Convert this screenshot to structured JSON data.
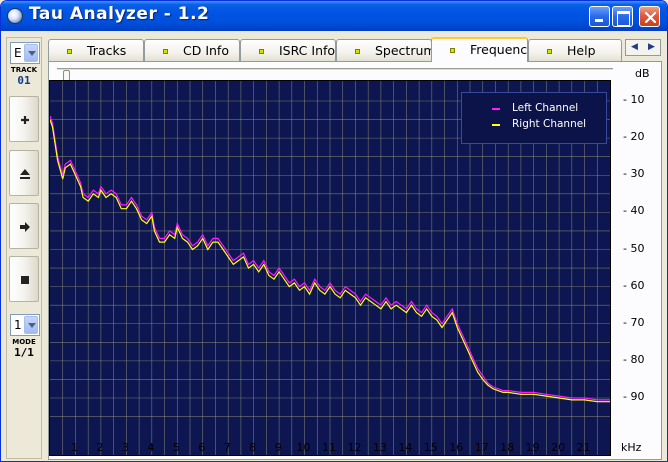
{
  "window": {
    "title": "Tau Analyzer - 1.2",
    "controls": [
      "minimize",
      "maximize",
      "close"
    ]
  },
  "sidebar": {
    "track_combo_value": "E",
    "track_label": "TRACK",
    "track_number": "01",
    "buttons": [
      {
        "name": "plus",
        "icon": "plus-icon"
      },
      {
        "name": "eject",
        "icon": "eject-icon"
      },
      {
        "name": "next",
        "icon": "arrow-right-icon"
      },
      {
        "name": "stop",
        "icon": "stop-icon"
      }
    ],
    "mode_combo_value": "1",
    "mode_label": "MODE",
    "mode_value": "1/1"
  },
  "tabs": [
    {
      "label": "Tracks",
      "active": false
    },
    {
      "label": "CD Info",
      "active": false
    },
    {
      "label": "ISRC Info",
      "active": false
    },
    {
      "label": "Spectrum",
      "active": false
    },
    {
      "label": "Frequency",
      "active": true
    },
    {
      "label": "Help",
      "active": false
    }
  ],
  "tab_led_color": "#d7e400",
  "chart_data": {
    "type": "line",
    "title": "",
    "xlabel": "kHz",
    "ylabel": "dB",
    "xlim": [
      0,
      22
    ],
    "ylim": [
      -10,
      -95
    ],
    "x_ticks": [
      "1",
      "2",
      "3",
      "4",
      "5",
      "6",
      "7",
      "8",
      "9",
      "10",
      "11",
      "12",
      "13",
      "14",
      "15",
      "16",
      "17",
      "18",
      "19",
      "20",
      "21"
    ],
    "y_ticks": [
      "- 10",
      "- 20",
      "- 30",
      "- 40",
      "- 50",
      "- 60",
      "- 70",
      "- 80",
      "- 90"
    ],
    "grid": true,
    "legend_position": "top-right",
    "background_color": "#0d1650",
    "grid_color": "#9a9a7a",
    "series": [
      {
        "name": "Left Channel",
        "color": "#ff1aff",
        "x": [
          0.0,
          0.1,
          0.3,
          0.5,
          0.6,
          0.8,
          1.0,
          1.2,
          1.3,
          1.5,
          1.7,
          1.9,
          2.0,
          2.2,
          2.4,
          2.6,
          2.8,
          3.0,
          3.2,
          3.4,
          3.6,
          3.8,
          4.0,
          4.1,
          4.3,
          4.5,
          4.7,
          4.9,
          5.0,
          5.2,
          5.4,
          5.6,
          5.8,
          6.0,
          6.2,
          6.4,
          6.6,
          6.8,
          7.0,
          7.2,
          7.4,
          7.6,
          7.8,
          8.0,
          8.2,
          8.4,
          8.6,
          8.8,
          9.0,
          9.2,
          9.4,
          9.6,
          9.8,
          10.0,
          10.2,
          10.4,
          10.6,
          10.8,
          11.0,
          11.2,
          11.4,
          11.6,
          11.8,
          12.0,
          12.2,
          12.4,
          12.6,
          12.8,
          13.0,
          13.2,
          13.4,
          13.6,
          13.8,
          14.0,
          14.2,
          14.4,
          14.6,
          14.8,
          15.0,
          15.2,
          15.4,
          15.6,
          15.8,
          16.0,
          16.2,
          16.4,
          16.6,
          16.8,
          17.0,
          17.2,
          17.4,
          17.6,
          17.8,
          18.0,
          18.5,
          19.0,
          19.5,
          20.0,
          20.5,
          21.0,
          21.5,
          22.0
        ],
        "values": [
          -14,
          -16,
          -25,
          -30,
          -27,
          -26,
          -29,
          -32,
          -35,
          -36,
          -34,
          -35,
          -33,
          -35,
          -34,
          -35,
          -38,
          -38,
          -36,
          -38,
          -41,
          -42,
          -40,
          -44,
          -47,
          -47,
          -45,
          -46,
          -43,
          -46,
          -47,
          -49,
          -48,
          -46,
          -49,
          -47,
          -47,
          -49,
          -51,
          -53,
          -52,
          -51,
          -54,
          -53,
          -55,
          -53,
          -56,
          -57,
          -55,
          -57,
          -59,
          -58,
          -60,
          -59,
          -61,
          -58,
          -60,
          -61,
          -59,
          -61,
          -62,
          -60,
          -61,
          -62,
          -64,
          -62,
          -63,
          -64,
          -65,
          -63,
          -65,
          -64,
          -65,
          -66,
          -64,
          -66,
          -67,
          -65,
          -67,
          -68,
          -70,
          -68,
          -66,
          -70,
          -73,
          -76,
          -79,
          -82,
          -84,
          -86,
          -87,
          -87.5,
          -88,
          -88,
          -88.5,
          -88.5,
          -89,
          -89.5,
          -90,
          -90,
          -90.5,
          -90.5
        ]
      },
      {
        "name": "Right Channel",
        "color": "#ffff1a",
        "x": [
          0.0,
          0.1,
          0.3,
          0.5,
          0.6,
          0.8,
          1.0,
          1.2,
          1.3,
          1.5,
          1.7,
          1.9,
          2.0,
          2.2,
          2.4,
          2.6,
          2.8,
          3.0,
          3.2,
          3.4,
          3.6,
          3.8,
          4.0,
          4.1,
          4.3,
          4.5,
          4.7,
          4.9,
          5.0,
          5.2,
          5.4,
          5.6,
          5.8,
          6.0,
          6.2,
          6.4,
          6.6,
          6.8,
          7.0,
          7.2,
          7.4,
          7.6,
          7.8,
          8.0,
          8.2,
          8.4,
          8.6,
          8.8,
          9.0,
          9.2,
          9.4,
          9.6,
          9.8,
          10.0,
          10.2,
          10.4,
          10.6,
          10.8,
          11.0,
          11.2,
          11.4,
          11.6,
          11.8,
          12.0,
          12.2,
          12.4,
          12.6,
          12.8,
          13.0,
          13.2,
          13.4,
          13.6,
          13.8,
          14.0,
          14.2,
          14.4,
          14.6,
          14.8,
          15.0,
          15.2,
          15.4,
          15.6,
          15.8,
          16.0,
          16.2,
          16.4,
          16.6,
          16.8,
          17.0,
          17.2,
          17.4,
          17.6,
          17.8,
          18.0,
          18.5,
          19.0,
          19.5,
          20.0,
          20.5,
          21.0,
          21.5,
          22.0
        ],
        "values": [
          -15,
          -17,
          -26,
          -31,
          -28,
          -27,
          -30,
          -33,
          -36,
          -37,
          -35,
          -36,
          -34,
          -36,
          -35,
          -36,
          -39,
          -39,
          -37,
          -39,
          -42,
          -43,
          -41,
          -45,
          -48,
          -48,
          -46,
          -47,
          -44,
          -47,
          -48,
          -50,
          -49,
          -47,
          -50,
          -48,
          -48,
          -50,
          -52,
          -54,
          -53,
          -52,
          -55,
          -54,
          -56,
          -54,
          -57,
          -58,
          -56,
          -58,
          -60,
          -59,
          -61,
          -60,
          -62,
          -59,
          -61,
          -62,
          -60,
          -62,
          -63,
          -61,
          -62,
          -63,
          -65,
          -63,
          -64,
          -65,
          -66,
          -64,
          -66,
          -65,
          -66,
          -67,
          -65,
          -67,
          -68,
          -66,
          -68,
          -69,
          -71,
          -69,
          -67,
          -71,
          -74,
          -77,
          -80,
          -83,
          -85,
          -86.5,
          -87.5,
          -88,
          -88.5,
          -88.5,
          -89,
          -89,
          -89.5,
          -90,
          -90.5,
          -90.5,
          -91,
          -91
        ]
      }
    ]
  }
}
